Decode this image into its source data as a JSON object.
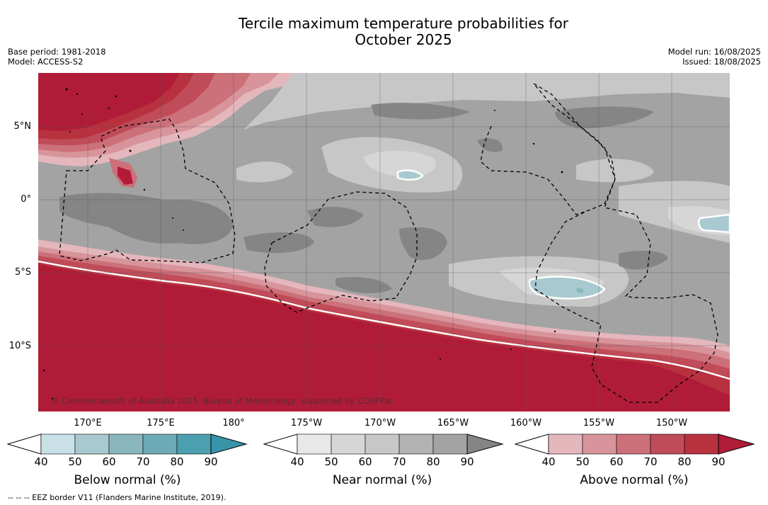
{
  "title": {
    "line1": "Tercile maximum temperature probabilities for",
    "line2": "October 2025"
  },
  "meta_left": {
    "base_period": "Base period: 1981-2018",
    "model": "Model: ACCESS-S2"
  },
  "meta_right": {
    "model_run": "Model run: 16/08/2025",
    "issued": "Issued: 18/08/2025"
  },
  "map": {
    "lat_labels": [
      "5°N",
      "0°",
      "5°S",
      "10°S"
    ],
    "lon_labels": [
      "170°E",
      "175°E",
      "180°",
      "175°W",
      "170°W",
      "165°W",
      "160°W",
      "155°W",
      "150°W"
    ],
    "copyright": "© Commonwealth of Australia 2025, Bureau of Meteorology, supported by COSPPac",
    "colors": {
      "above": [
        "#e4b7bc",
        "#d8949b",
        "#cc7079",
        "#c04c59",
        "#b8313f",
        "#b01c38"
      ],
      "near": [
        "#e8e8e8",
        "#d6d6d6",
        "#c7c7c7",
        "#b3b3b3",
        "#a3a3a3",
        "#858585"
      ],
      "below": [
        "#c8e0e6",
        "#a8c9cf",
        "#89b7bd",
        "#6eaab5",
        "#4b9fae",
        "#3894a8"
      ]
    }
  },
  "colorbars": [
    {
      "name": "below",
      "title": "Below normal (%)",
      "ticks": [
        "40",
        "50",
        "60",
        "70",
        "80",
        "90"
      ],
      "colors": [
        "#c8e0e6",
        "#a8c9cf",
        "#89b7bd",
        "#6eaab5",
        "#4b9fae",
        "#3894a8"
      ]
    },
    {
      "name": "near",
      "title": "Near normal (%)",
      "ticks": [
        "40",
        "50",
        "60",
        "70",
        "80",
        "90"
      ],
      "colors": [
        "#e8e8e8",
        "#d6d6d6",
        "#c7c7c7",
        "#b3b3b3",
        "#a3a3a3",
        "#858585"
      ]
    },
    {
      "name": "above",
      "title": "Above normal (%)",
      "ticks": [
        "40",
        "50",
        "60",
        "70",
        "80",
        "90"
      ],
      "colors": [
        "#e4b7bc",
        "#d8949b",
        "#cc7079",
        "#c04c59",
        "#b8313f",
        "#b01c38"
      ]
    }
  ],
  "footer": "--  --  -- EEZ border V11 (Flanders Marine Institute, 2019)."
}
